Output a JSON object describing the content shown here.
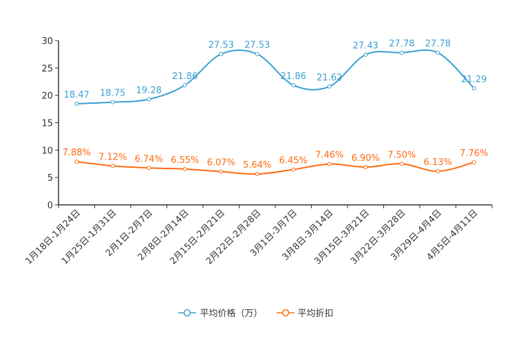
{
  "chart_data": {
    "type": "line",
    "categories": [
      "1月18日-1月24日",
      "1月25日-1月31日",
      "2月1日-2月7日",
      "2月8日-2月14日",
      "2月15日-2月21日",
      "2月22日-2月28日",
      "3月1日-3月7日",
      "3月8日-3月14日",
      "3月15日-3月21日",
      "3月22日-3月28日",
      "3月29日-4月4日",
      "4月5日-4月11日"
    ],
    "ylim": [
      0,
      30
    ],
    "yticks": [
      0,
      5,
      10,
      15,
      20,
      25,
      30
    ],
    "series": [
      {
        "name": "平均价格（万）",
        "color": "#3a9fd3",
        "values": [
          18.47,
          18.75,
          19.28,
          21.86,
          27.53,
          27.53,
          21.86,
          21.62,
          27.43,
          27.78,
          27.78,
          21.29
        ],
        "labels": [
          "18.47",
          "18.75",
          "19.28",
          "21.86",
          "27.53",
          "27.53",
          "21.86",
          "21.62",
          "27.43",
          "27.78",
          "27.78",
          "21.29"
        ]
      },
      {
        "name": "平均折扣",
        "color": "#ff6a0d",
        "values": [
          7.88,
          7.12,
          6.74,
          6.55,
          6.07,
          5.64,
          6.45,
          7.46,
          6.9,
          7.5,
          6.13,
          7.76
        ],
        "labels": [
          "7.88%",
          "7.12%",
          "6.74%",
          "6.55%",
          "6.07%",
          "5.64%",
          "6.45%",
          "7.46%",
          "6.90%",
          "7.50%",
          "6.13%",
          "7.76%"
        ]
      }
    ],
    "legend_position": "bottom",
    "grid": false
  }
}
